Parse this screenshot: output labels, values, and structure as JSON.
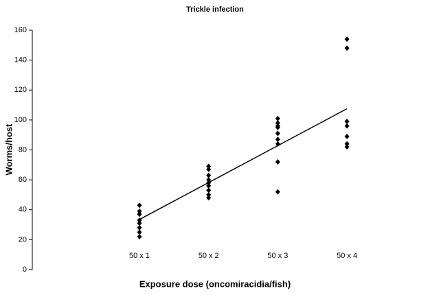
{
  "chart_data": {
    "type": "scatter",
    "title": "Trickle infection",
    "x_label": "Exposure dose (oncomiracidia/fish)",
    "y_label": "Worms/host",
    "categories": [
      "50 x 1",
      "50 x 2",
      "50 x 3",
      "50 x 4"
    ],
    "values": [
      [
        43,
        39,
        37,
        33,
        31,
        28,
        25,
        22
      ],
      [
        69,
        67,
        63,
        60,
        58,
        56,
        53,
        50,
        48
      ],
      [
        101,
        98,
        96,
        95,
        91,
        87,
        84,
        72,
        52
      ],
      [
        154,
        148,
        99,
        96,
        89,
        84,
        82
      ]
    ],
    "trendline": [
      33.5,
      107.5
    ],
    "color": "#000000",
    "ylim": [
      0,
      160
    ],
    "yticks": [
      0,
      20,
      40,
      60,
      80,
      100,
      120,
      140,
      160
    ]
  }
}
